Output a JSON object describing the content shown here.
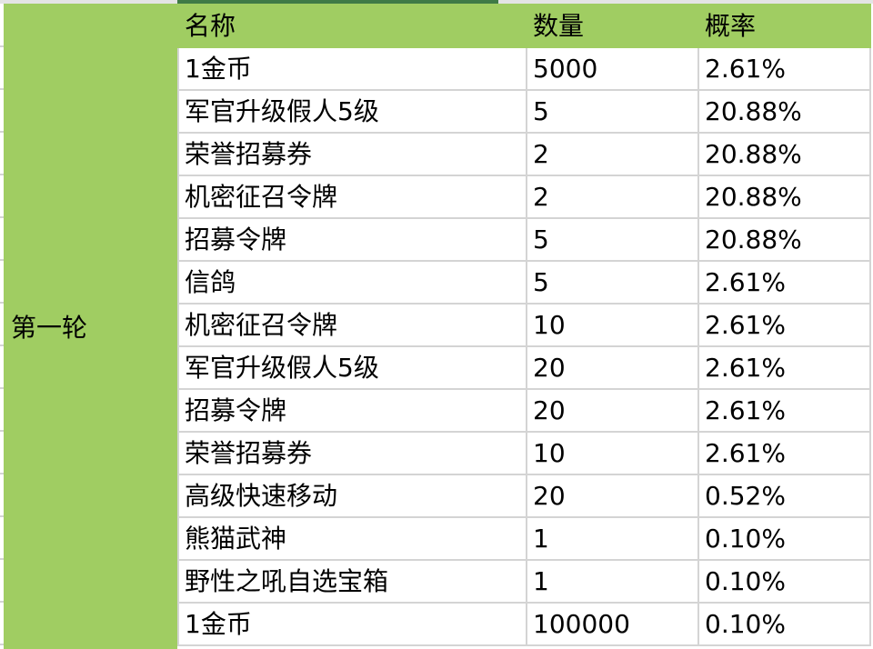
{
  "group_label": "第一轮",
  "headers": {
    "name": "名称",
    "quantity": "数量",
    "probability": "概率"
  },
  "rows": [
    {
      "name": "1金币",
      "quantity": "5000",
      "probability": "2.61%"
    },
    {
      "name": "军官升级假人5级",
      "quantity": "5",
      "probability": "20.88%"
    },
    {
      "name": "荣誉招募券",
      "quantity": "2",
      "probability": "20.88%"
    },
    {
      "name": "机密征召令牌",
      "quantity": "2",
      "probability": "20.88%"
    },
    {
      "name": "招募令牌",
      "quantity": "5",
      "probability": "20.88%"
    },
    {
      "name": "信鸽",
      "quantity": "5",
      "probability": "2.61%"
    },
    {
      "name": "机密征召令牌",
      "quantity": "10",
      "probability": "2.61%"
    },
    {
      "name": "军官升级假人5级",
      "quantity": "20",
      "probability": "2.61%"
    },
    {
      "name": "招募令牌",
      "quantity": "20",
      "probability": "2.61%"
    },
    {
      "name": "荣誉招募券",
      "quantity": "10",
      "probability": "2.61%"
    },
    {
      "name": "高级快速移动",
      "quantity": "20",
      "probability": "0.52%"
    },
    {
      "name": "熊猫武神",
      "quantity": "1",
      "probability": "0.10%"
    },
    {
      "name": "野性之吼自选宝箱",
      "quantity": "1",
      "probability": "0.10%"
    },
    {
      "name": "1金币",
      "quantity": "100000",
      "probability": "0.10%"
    }
  ],
  "colors": {
    "header_fill": "#a0cd62",
    "selection": "#3f7a46",
    "grid": "#d4d4d4"
  }
}
